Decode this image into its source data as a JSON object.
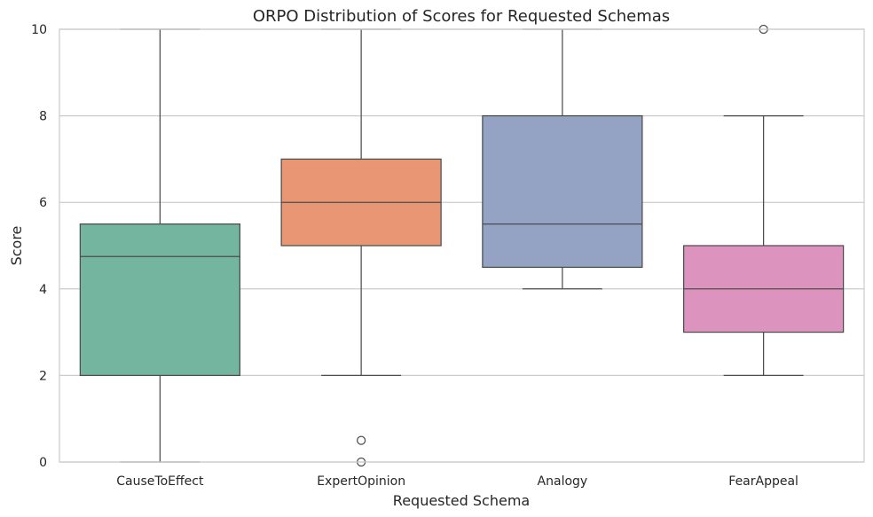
{
  "chart_data": {
    "type": "box",
    "title": "ORPO Distribution of Scores for Requested Schemas",
    "xlabel": "Requested Schema",
    "ylabel": "Score",
    "ylim": [
      0,
      10
    ],
    "yticks": [
      0,
      2,
      4,
      6,
      8,
      10
    ],
    "grid": "horizontal",
    "categories": [
      "CauseToEffect",
      "ExpertOpinion",
      "Analogy",
      "FearAppeal"
    ],
    "boxes": [
      {
        "category": "CauseToEffect",
        "whisker_low": 0,
        "q1": 2,
        "median": 4.75,
        "q3": 5.5,
        "whisker_high": 10,
        "outliers": [],
        "color": "#73b59f"
      },
      {
        "category": "ExpertOpinion",
        "whisker_low": 2,
        "q1": 5,
        "median": 6,
        "q3": 7,
        "whisker_high": 10,
        "outliers": [
          0.5,
          0
        ],
        "color": "#e99674"
      },
      {
        "category": "Analogy",
        "whisker_low": 4,
        "q1": 4.5,
        "median": 5.5,
        "q3": 8,
        "whisker_high": 10,
        "outliers": [],
        "color": "#94a3c3"
      },
      {
        "category": "FearAppeal",
        "whisker_low": 2,
        "q1": 3,
        "median": 4,
        "q3": 5,
        "whisker_high": 8,
        "outliers": [
          10
        ],
        "color": "#dc94bf"
      }
    ]
  }
}
